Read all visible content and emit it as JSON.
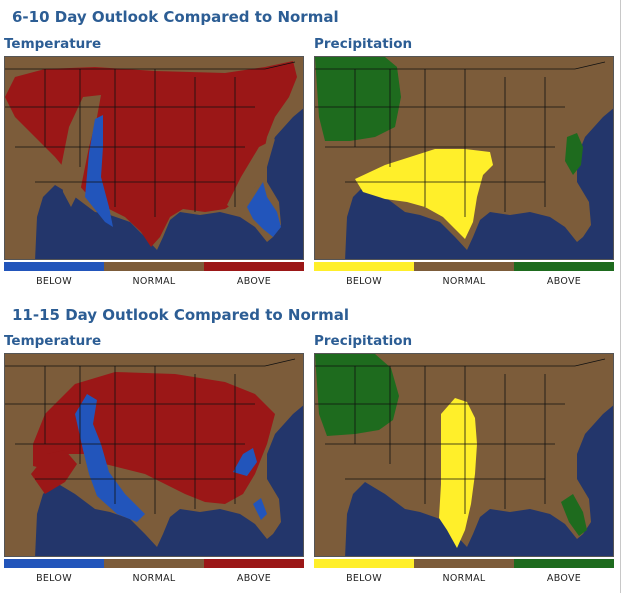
{
  "outlooks": [
    {
      "title": "6-10 Day Outlook Compared to Normal",
      "temperature": {
        "title": "Temperature",
        "legend": [
          "BELOW",
          "NORMAL",
          "ABOVE"
        ],
        "legend_colors": [
          "#2255bb",
          "#7c5c3a",
          "#9b1717"
        ]
      },
      "precipitation": {
        "title": "Precipitation",
        "legend": [
          "BELOW",
          "NORMAL",
          "ABOVE"
        ],
        "legend_colors": [
          "#ffef2a",
          "#7c5c3a",
          "#1e6b1e"
        ]
      }
    },
    {
      "title": "11-15 Day Outlook Compared to Normal",
      "temperature": {
        "title": "Temperature",
        "legend": [
          "BELOW",
          "NORMAL",
          "ABOVE"
        ],
        "legend_colors": [
          "#2255bb",
          "#7c5c3a",
          "#9b1717"
        ]
      },
      "precipitation": {
        "title": "Precipitation",
        "legend": [
          "BELOW",
          "NORMAL",
          "ABOVE"
        ],
        "legend_colors": [
          "#ffef2a",
          "#7c5c3a",
          "#1e6b1e"
        ]
      }
    }
  ],
  "colors": {
    "ocean": "#23366b",
    "land_normal": "#7c5c3a",
    "above_temp": "#9b1717",
    "below_temp": "#2255bb",
    "below_precip": "#ffef2a",
    "above_precip": "#1e6b1e"
  }
}
